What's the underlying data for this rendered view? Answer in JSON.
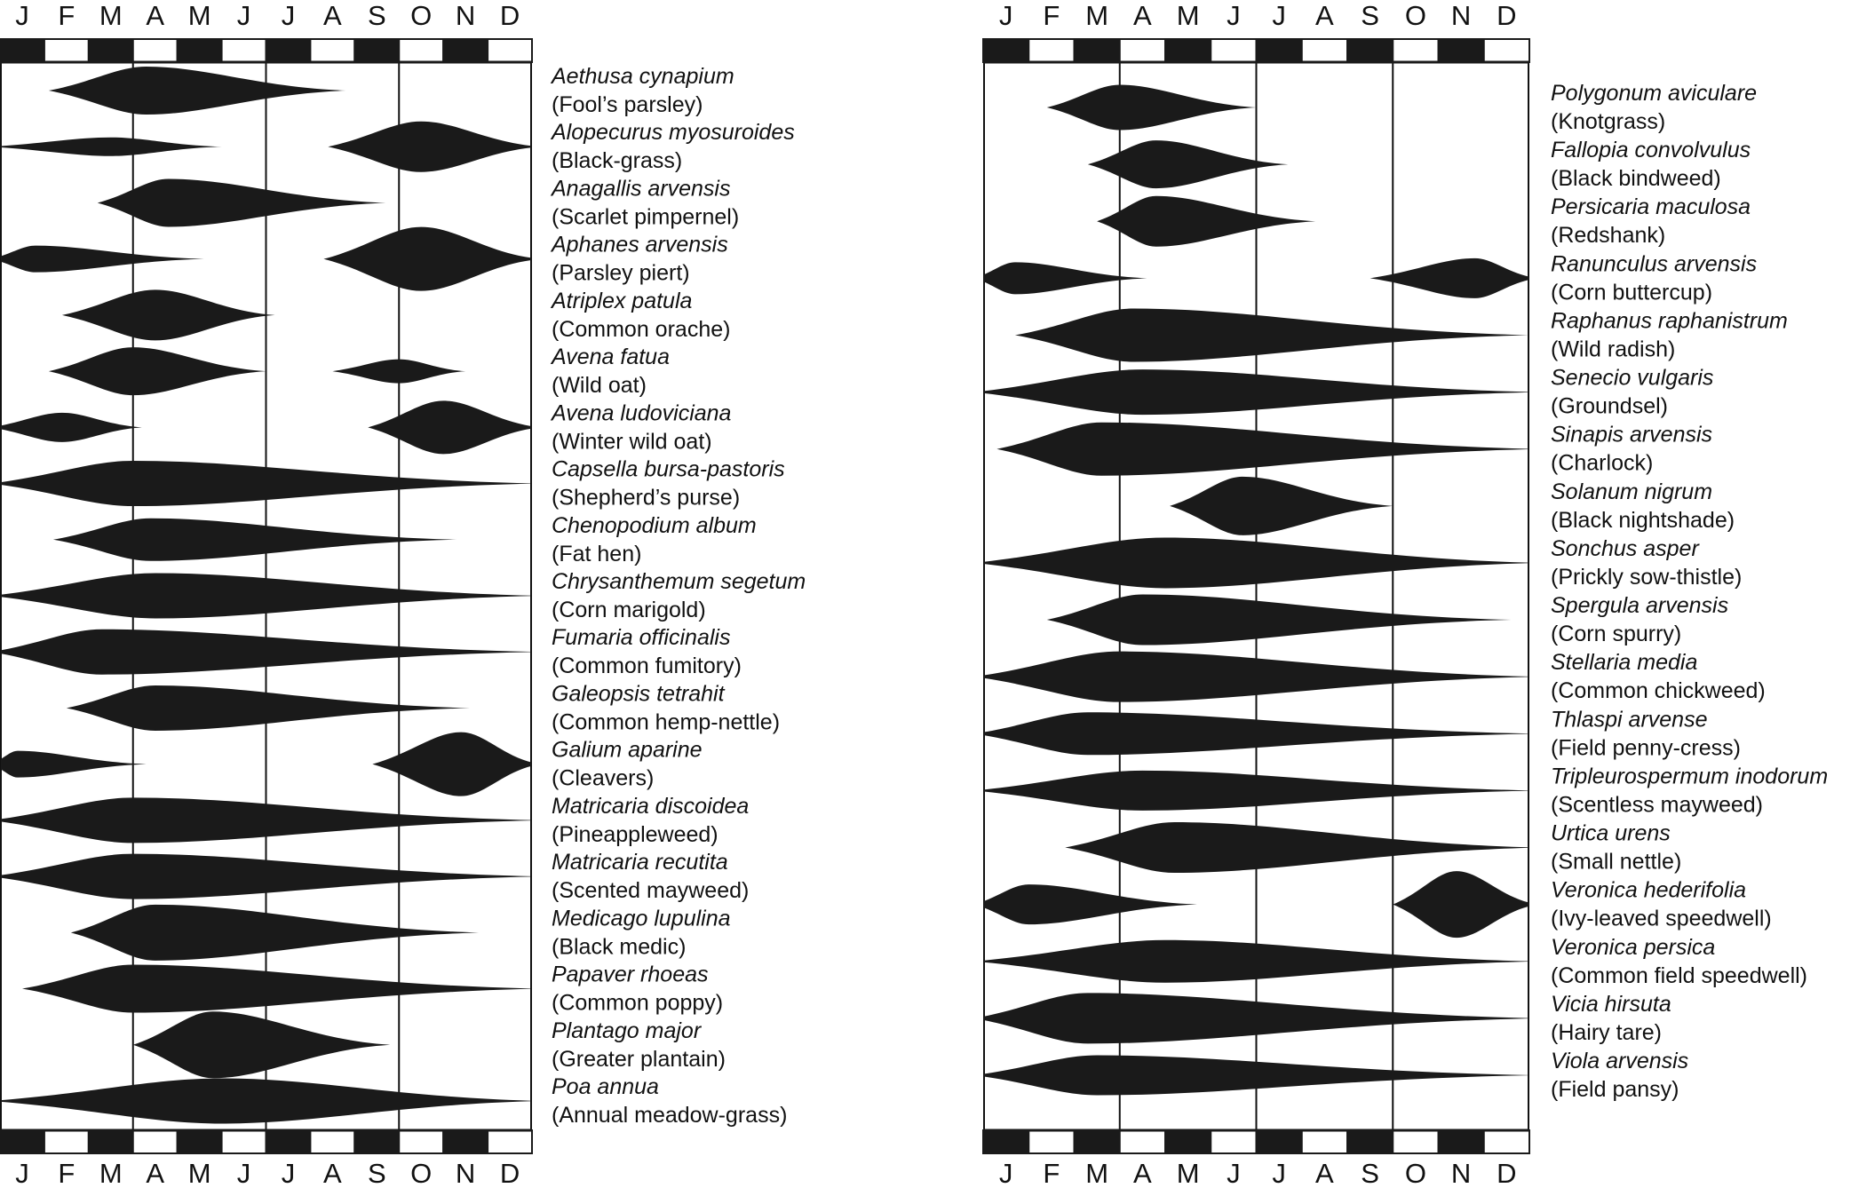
{
  "months": [
    "J",
    "F",
    "M",
    "A",
    "M",
    "J",
    "J",
    "A",
    "S",
    "O",
    "N",
    "D"
  ],
  "shape_color": "#1a1a1a",
  "panels": [
    {
      "id": "left",
      "species": [
        {
          "scientific": "Aethusa cynapium",
          "common": "(Fool’s parsley)",
          "periods": [
            {
              "start": 1.1,
              "end": 7.8,
              "peak": 3.3,
              "thick": 0.9
            }
          ]
        },
        {
          "scientific": "Alopecurus myosuroides",
          "common": "(Black-grass)",
          "periods": [
            {
              "start": -0.2,
              "end": 5.0,
              "peak": 2.5,
              "thick": 0.35
            },
            {
              "start": 7.4,
              "end": 12.2,
              "peak": 9.5,
              "thick": 0.95
            }
          ]
        },
        {
          "scientific": "Anagallis arvensis",
          "common": "(Scarlet pimpernel)",
          "periods": [
            {
              "start": 2.2,
              "end": 8.7,
              "peak": 3.8,
              "thick": 0.9
            }
          ]
        },
        {
          "scientific": "Aphanes arvensis",
          "common": "(Parsley piert)",
          "periods": [
            {
              "start": -0.2,
              "end": 4.6,
              "peak": 0.8,
              "thick": 0.5
            },
            {
              "start": 7.3,
              "end": 12.2,
              "peak": 9.5,
              "thick": 1.2
            }
          ]
        },
        {
          "scientific": "Atriplex patula",
          "common": "(Common orache)",
          "periods": [
            {
              "start": 1.4,
              "end": 6.2,
              "peak": 3.5,
              "thick": 0.95
            }
          ]
        },
        {
          "scientific": "Avena fatua",
          "common": "(Wild oat)",
          "periods": [
            {
              "start": 1.1,
              "end": 6.0,
              "peak": 3.0,
              "thick": 0.9
            },
            {
              "start": 7.5,
              "end": 10.5,
              "peak": 9.0,
              "thick": 0.45
            }
          ]
        },
        {
          "scientific": "Avena ludoviciana",
          "common": "(Winter wild oat)",
          "periods": [
            {
              "start": -0.2,
              "end": 3.2,
              "peak": 1.4,
              "thick": 0.55
            },
            {
              "start": 8.3,
              "end": 12.2,
              "peak": 10.0,
              "thick": 1.0
            }
          ]
        },
        {
          "scientific": "Capsella bursa-pastoris",
          "common": "(Shepherd’s purse)",
          "periods": [
            {
              "start": -0.2,
              "end": 12.2,
              "peak": 3.0,
              "thick": 0.85
            }
          ]
        },
        {
          "scientific": "Chenopodium album",
          "common": "(Fat hen)",
          "periods": [
            {
              "start": 1.2,
              "end": 10.3,
              "peak": 3.4,
              "thick": 0.8
            }
          ]
        },
        {
          "scientific": "Chrysanthemum segetum",
          "common": "(Corn marigold)",
          "periods": [
            {
              "start": -0.2,
              "end": 12.2,
              "peak": 3.5,
              "thick": 0.85
            }
          ]
        },
        {
          "scientific": "Fumaria officinalis",
          "common": "(Common fumitory)",
          "periods": [
            {
              "start": -0.2,
              "end": 12.2,
              "peak": 2.3,
              "thick": 0.85
            }
          ]
        },
        {
          "scientific": "Galeopsis tetrahit",
          "common": "(Common hemp-nettle)",
          "periods": [
            {
              "start": 1.5,
              "end": 10.6,
              "peak": 3.5,
              "thick": 0.85
            }
          ]
        },
        {
          "scientific": "Galium aparine",
          "common": "(Cleavers)",
          "periods": [
            {
              "start": -0.2,
              "end": 3.3,
              "peak": 0.4,
              "thick": 0.5
            },
            {
              "start": 8.4,
              "end": 12.2,
              "peak": 10.4,
              "thick": 1.2
            }
          ]
        },
        {
          "scientific": "Matricaria discoidea",
          "common": "(Pineappleweed)",
          "periods": [
            {
              "start": -0.2,
              "end": 12.2,
              "peak": 3.0,
              "thick": 0.85
            }
          ]
        },
        {
          "scientific": "Matricaria recutita",
          "common": "(Scented mayweed)",
          "periods": [
            {
              "start": -0.2,
              "end": 12.2,
              "peak": 3.0,
              "thick": 0.85
            }
          ]
        },
        {
          "scientific": "Medicago lupulina",
          "common": "(Black medic)",
          "periods": [
            {
              "start": 1.6,
              "end": 10.8,
              "peak": 3.5,
              "thick": 1.05
            }
          ]
        },
        {
          "scientific": "Papaver rhoeas",
          "common": "(Common poppy)",
          "periods": [
            {
              "start": 0.5,
              "end": 12.2,
              "peak": 3.0,
              "thick": 0.9
            }
          ]
        },
        {
          "scientific": "Plantago major",
          "common": "(Greater plantain)",
          "periods": [
            {
              "start": 3.0,
              "end": 8.8,
              "peak": 4.8,
              "thick": 1.25
            }
          ]
        },
        {
          "scientific": "Poa annua",
          "common": "(Annual meadow-grass)",
          "periods": [
            {
              "start": -0.2,
              "end": 12.2,
              "peak": 5.0,
              "thick": 0.85
            }
          ]
        }
      ]
    },
    {
      "id": "right",
      "species": [
        {
          "scientific": "Polygonum aviculare",
          "common": "(Knotgrass)",
          "periods": [
            {
              "start": 1.4,
              "end": 6.0,
              "peak": 3.0,
              "thick": 0.85
            }
          ]
        },
        {
          "scientific": "Fallopia convolvulus",
          "common": "(Black bindweed)",
          "periods": [
            {
              "start": 2.3,
              "end": 6.7,
              "peak": 3.8,
              "thick": 0.9
            }
          ]
        },
        {
          "scientific": "Persicaria maculosa",
          "common": "(Redshank)",
          "periods": [
            {
              "start": 2.5,
              "end": 7.3,
              "peak": 3.8,
              "thick": 0.95
            }
          ]
        },
        {
          "scientific": "Ranunculus arvensis",
          "common": "(Corn buttercup)",
          "periods": [
            {
              "start": -0.2,
              "end": 3.6,
              "peak": 0.7,
              "thick": 0.6
            },
            {
              "start": 8.5,
              "end": 12.2,
              "peak": 10.8,
              "thick": 0.75
            }
          ]
        },
        {
          "scientific": "Raphanus raphanistrum",
          "common": "(Wild radish)",
          "periods": [
            {
              "start": 0.7,
              "end": 12.0,
              "peak": 3.3,
              "thick": 1.0
            }
          ]
        },
        {
          "scientific": "Senecio vulgaris",
          "common": "(Groundsel)",
          "periods": [
            {
              "start": -0.2,
              "end": 12.2,
              "peak": 3.5,
              "thick": 0.85
            }
          ]
        },
        {
          "scientific": "Sinapis arvensis",
          "common": "(Charlock)",
          "periods": [
            {
              "start": 0.3,
              "end": 12.2,
              "peak": 2.6,
              "thick": 1.0
            }
          ]
        },
        {
          "scientific": "Solanum nigrum",
          "common": "(Black nightshade)",
          "periods": [
            {
              "start": 4.1,
              "end": 9.0,
              "peak": 5.7,
              "thick": 1.1
            }
          ]
        },
        {
          "scientific": "Sonchus asper",
          "common": "(Prickly sow-thistle)",
          "periods": [
            {
              "start": -0.2,
              "end": 12.2,
              "peak": 4.0,
              "thick": 0.95
            }
          ]
        },
        {
          "scientific": "Spergula arvensis",
          "common": "(Corn spurry)",
          "periods": [
            {
              "start": 1.4,
              "end": 11.6,
              "peak": 3.5,
              "thick": 0.95
            }
          ]
        },
        {
          "scientific": "Stellaria media",
          "common": "(Common chickweed)",
          "periods": [
            {
              "start": -0.2,
              "end": 12.2,
              "peak": 3.0,
              "thick": 0.95
            }
          ]
        },
        {
          "scientific": "Thlaspi arvense",
          "common": "(Field penny-cress)",
          "periods": [
            {
              "start": -0.2,
              "end": 12.2,
              "peak": 2.3,
              "thick": 0.8
            }
          ]
        },
        {
          "scientific": "Tripleurospermum inodorum",
          "common": "(Scentless mayweed)",
          "periods": [
            {
              "start": -0.2,
              "end": 12.2,
              "peak": 3.5,
              "thick": 0.75
            }
          ]
        },
        {
          "scientific": "Urtica urens",
          "common": "(Small nettle)",
          "periods": [
            {
              "start": 1.8,
              "end": 12.2,
              "peak": 4.2,
              "thick": 0.95
            }
          ]
        },
        {
          "scientific": "Veronica hederifolia",
          "common": "(Ivy-leaved speedwell)",
          "periods": [
            {
              "start": -0.2,
              "end": 4.7,
              "peak": 1.0,
              "thick": 0.75
            },
            {
              "start": 9.0,
              "end": 12.2,
              "peak": 10.4,
              "thick": 1.25
            }
          ]
        },
        {
          "scientific": "Veronica persica",
          "common": "(Common field speedwell)",
          "periods": [
            {
              "start": -0.2,
              "end": 12.2,
              "peak": 4.0,
              "thick": 0.8
            }
          ]
        },
        {
          "scientific": "Vicia hirsuta",
          "common": "(Hairy tare)",
          "periods": [
            {
              "start": -0.2,
              "end": 12.2,
              "peak": 2.3,
              "thick": 0.95
            }
          ]
        },
        {
          "scientific": "Viola arvensis",
          "common": "(Field pansy)",
          "periods": [
            {
              "start": -0.2,
              "end": 12.2,
              "peak": 2.5,
              "thick": 0.75
            }
          ]
        }
      ]
    }
  ]
}
